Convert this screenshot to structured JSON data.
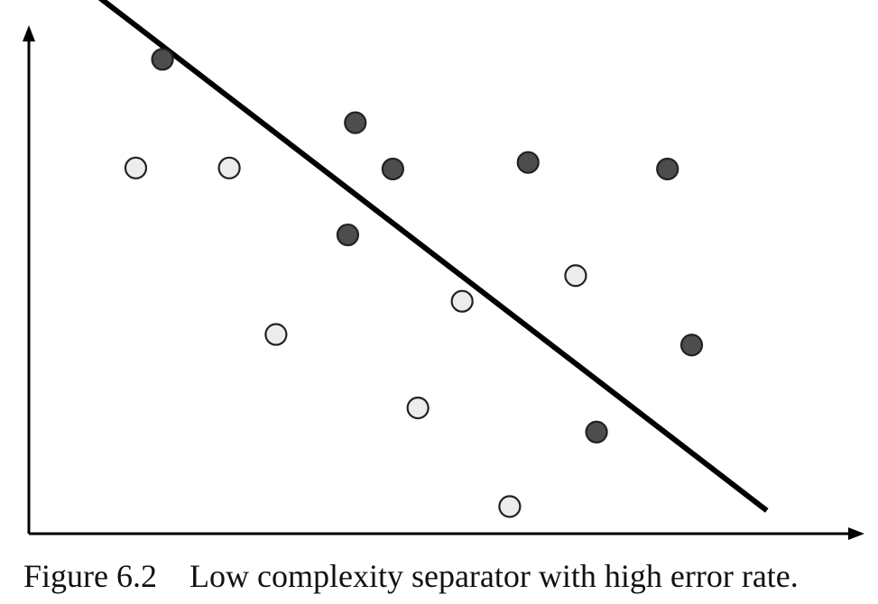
{
  "caption": {
    "number": "Figure 6.2",
    "text": "Low complexity separator with high error rate."
  },
  "colors": {
    "dark_point_fill": "#4d4d4d",
    "light_point_fill": "#ececec",
    "point_stroke": "#222222",
    "line": "#000000",
    "axis": "#000000"
  },
  "chart_data": {
    "type": "scatter",
    "title": "",
    "xlabel": "",
    "ylabel": "",
    "xlim": [
      0,
      100
    ],
    "ylim": [
      0,
      100
    ],
    "grid": false,
    "tick_labels": false,
    "series": [
      {
        "class": "dark",
        "points": [
          {
            "x": 15.9,
            "y": 94.3
          },
          {
            "x": 39.0,
            "y": 81.7
          },
          {
            "x": 43.5,
            "y": 72.5
          },
          {
            "x": 59.7,
            "y": 73.8
          },
          {
            "x": 76.4,
            "y": 72.5
          },
          {
            "x": 38.1,
            "y": 59.4
          },
          {
            "x": 79.3,
            "y": 37.5
          },
          {
            "x": 67.9,
            "y": 20.2
          }
        ]
      },
      {
        "class": "light",
        "points": [
          {
            "x": 12.7,
            "y": 72.7
          },
          {
            "x": 23.9,
            "y": 72.7
          },
          {
            "x": 29.5,
            "y": 39.6
          },
          {
            "x": 51.8,
            "y": 46.2
          },
          {
            "x": 65.4,
            "y": 51.3
          },
          {
            "x": 46.5,
            "y": 25.0
          },
          {
            "x": 57.5,
            "y": 5.4
          }
        ]
      }
    ],
    "separator": {
      "start": {
        "x": 8.4,
        "y": 106.5
      },
      "end": {
        "x": 88.3,
        "y": 4.6
      }
    }
  }
}
